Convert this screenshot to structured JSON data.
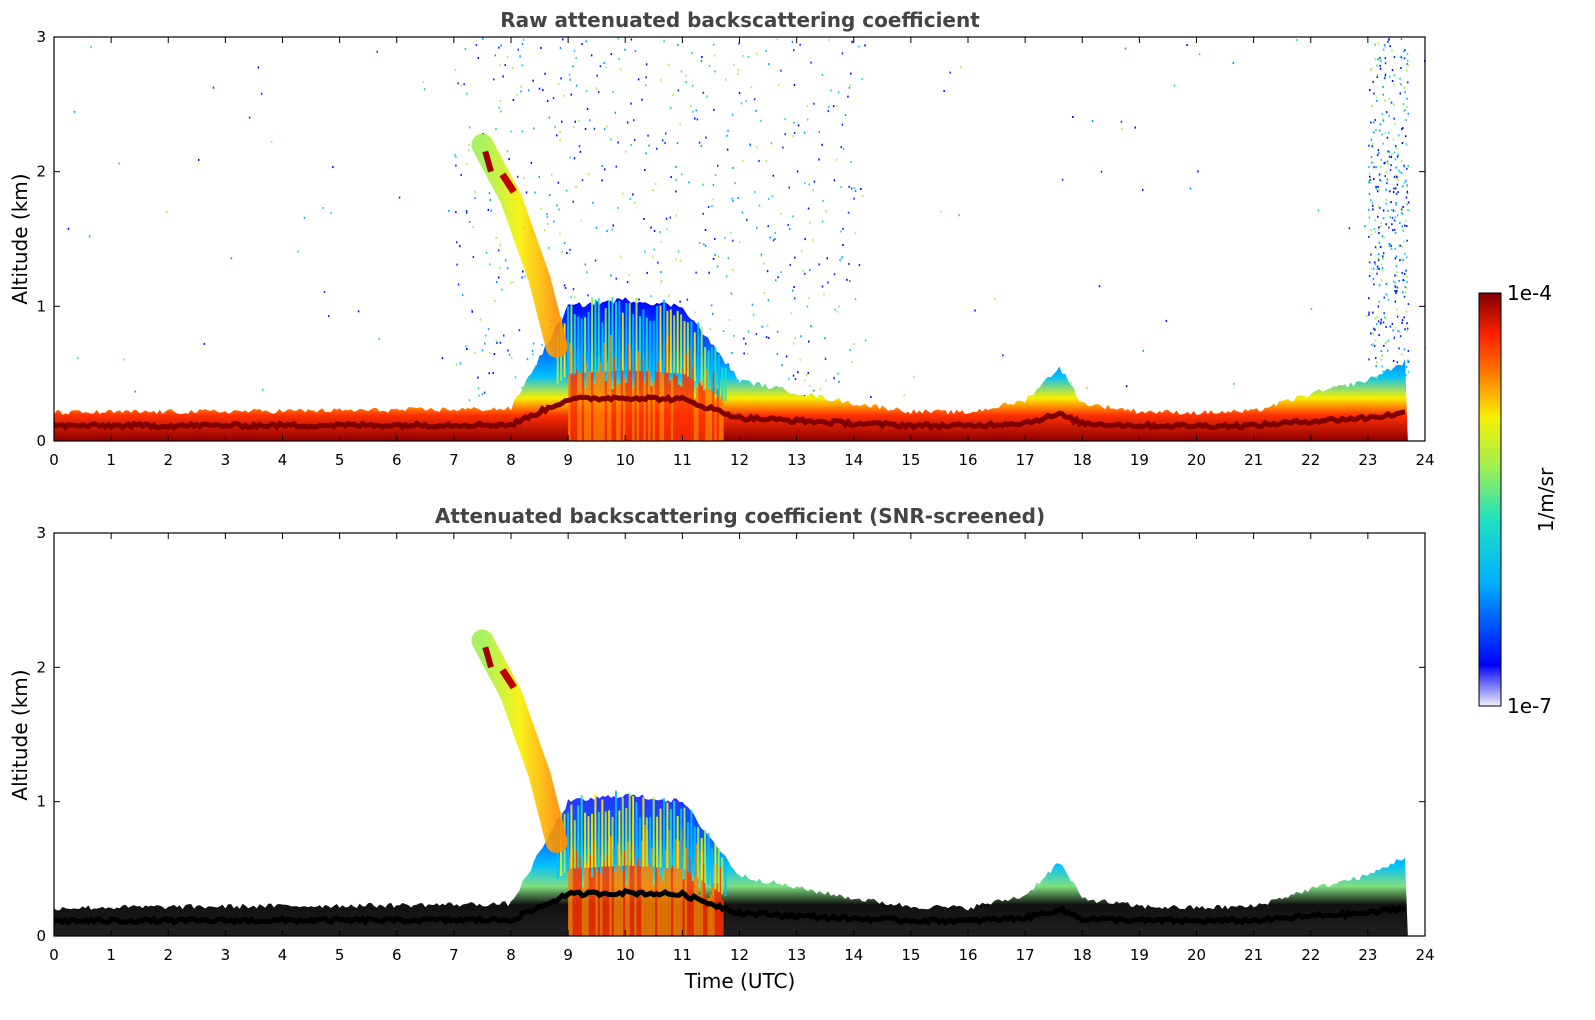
{
  "chart_data": [
    {
      "type": "heatmap",
      "title": "Raw attenuated backscattering coefficient",
      "xlabel": "",
      "ylabel": "Altitude (km)",
      "xlim": [
        0,
        24
      ],
      "ylim": [
        0,
        3
      ],
      "x_ticks": [
        "0",
        "1",
        "2",
        "3",
        "4",
        "5",
        "6",
        "7",
        "8",
        "9",
        "10",
        "11",
        "12",
        "13",
        "14",
        "15",
        "16",
        "17",
        "18",
        "19",
        "20",
        "21",
        "22",
        "23",
        "24"
      ],
      "y_ticks": [
        "0",
        "1",
        "2",
        "3"
      ],
      "screened": false,
      "boundary_layer_top_km": {
        "x": [
          0,
          3,
          6,
          8,
          9,
          10,
          11,
          12,
          13,
          14,
          15,
          16,
          17,
          17.6,
          18,
          19,
          20,
          21,
          22,
          23,
          23.7
        ],
        "y": [
          0.21,
          0.22,
          0.23,
          0.24,
          1.0,
          1.05,
          1.0,
          0.45,
          0.36,
          0.28,
          0.22,
          0.21,
          0.3,
          0.55,
          0.28,
          0.22,
          0.21,
          0.22,
          0.35,
          0.45,
          0.6
        ]
      },
      "plume": {
        "x": [
          7.5,
          8.0,
          8.5,
          8.8
        ],
        "y": [
          2.2,
          1.8,
          1.2,
          0.7
        ]
      }
    },
    {
      "type": "heatmap",
      "title": "Attenuated backscattering coefficient (SNR-screened)",
      "xlabel": "Time (UTC)",
      "ylabel": "Altitude (km)",
      "xlim": [
        0,
        24
      ],
      "ylim": [
        0,
        3
      ],
      "x_ticks": [
        "0",
        "1",
        "2",
        "3",
        "4",
        "5",
        "6",
        "7",
        "8",
        "9",
        "10",
        "11",
        "12",
        "13",
        "14",
        "15",
        "16",
        "17",
        "18",
        "19",
        "20",
        "21",
        "22",
        "23",
        "24"
      ],
      "y_ticks": [
        "0",
        "1",
        "2",
        "3"
      ],
      "screened": true,
      "boundary_layer_top_km": {
        "x": [
          0,
          3,
          6,
          8,
          9,
          10,
          11,
          12,
          13,
          14,
          15,
          16,
          17,
          17.6,
          18,
          19,
          20,
          21,
          22,
          23,
          23.7
        ],
        "y": [
          0.21,
          0.22,
          0.23,
          0.24,
          1.0,
          1.05,
          1.0,
          0.45,
          0.36,
          0.28,
          0.22,
          0.21,
          0.3,
          0.55,
          0.28,
          0.22,
          0.21,
          0.22,
          0.35,
          0.45,
          0.6
        ]
      },
      "plume": {
        "x": [
          7.5,
          8.0,
          8.5,
          8.8
        ],
        "y": [
          2.2,
          1.8,
          1.2,
          0.7
        ]
      }
    }
  ],
  "colorbar": {
    "min_label": "1e-7",
    "max_label": "1e-4",
    "unit": "1/m/sr",
    "colormap": [
      "#f0f0ff",
      "#0000ff",
      "#00b0ff",
      "#20e0c0",
      "#a0f050",
      "#f8f000",
      "#ff8000",
      "#ff2000",
      "#800000"
    ]
  }
}
